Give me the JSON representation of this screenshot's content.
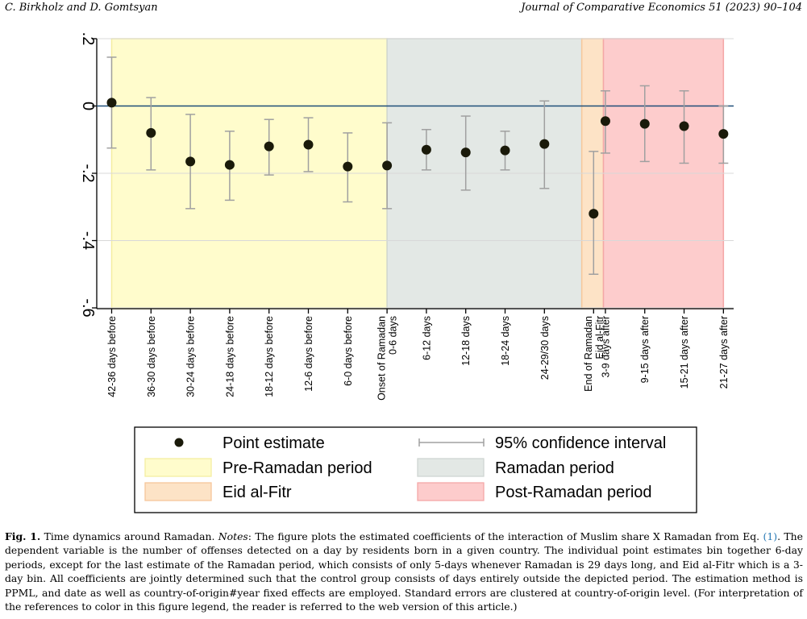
{
  "header": {
    "authors": "C. Birkholz and D. Gomtsyan",
    "journal": "Journal of Comparative Economics 51 (2023) 90–104"
  },
  "colors": {
    "pre_ramadan": "#fffccc",
    "ramadan": "#e3e8e5",
    "eid": "#fde3c6",
    "post_ramadan": "#fdcccc",
    "point": "#1a1a0a",
    "ci": "#a0a0a0",
    "zero_line": "#1f4e79"
  },
  "chart_data": {
    "type": "scatter",
    "y_tick_labels": [
      "-.6",
      "-.4",
      "-.2",
      "0",
      ".2"
    ],
    "y_ticks": [
      -0.6,
      -0.4,
      -0.2,
      0,
      0.2
    ],
    "ylim": [
      -0.6,
      0.2
    ],
    "grid": true,
    "zero_line": true,
    "categories": [
      [
        "42-36 days before"
      ],
      [
        "36-30 days before"
      ],
      [
        "30-24 days before"
      ],
      [
        "24-18 days before"
      ],
      [
        "18-12 days before"
      ],
      [
        "12-6 days before"
      ],
      [
        "6-0 days before"
      ],
      [
        "Onset of Ramadan",
        "0-6 days"
      ],
      [
        "6-12 days"
      ],
      [
        "12-18 days"
      ],
      [
        "18-24 days"
      ],
      [
        "24-29/30 days"
      ],
      [
        "End of Ramadan",
        "Eid al-Fitr"
      ],
      [
        "3-9 days after"
      ],
      [
        "9-15 days after"
      ],
      [
        "15-21 days after"
      ],
      [
        "21-27 days after"
      ]
    ],
    "x": [
      0,
      1,
      2,
      3,
      4,
      5,
      6,
      7,
      8,
      9,
      10,
      11,
      12.25,
      12.55,
      13.55,
      14.55,
      15.55
    ],
    "estimates": [
      0.01,
      -0.08,
      -0.165,
      -0.175,
      -0.12,
      -0.115,
      -0.18,
      -0.177,
      -0.13,
      -0.138,
      -0.132,
      -0.113,
      -0.32,
      -0.045,
      -0.053,
      -0.06,
      -0.083
    ],
    "ci_lower": [
      -0.125,
      -0.19,
      -0.305,
      -0.28,
      -0.205,
      -0.195,
      -0.285,
      -0.305,
      -0.19,
      -0.25,
      -0.19,
      -0.245,
      -0.5,
      -0.14,
      -0.165,
      -0.17,
      -0.17
    ],
    "ci_upper": [
      0.145,
      0.025,
      -0.025,
      -0.075,
      -0.04,
      -0.035,
      -0.08,
      -0.05,
      -0.07,
      -0.03,
      -0.075,
      0.015,
      -0.135,
      0.045,
      0.06,
      0.045,
      0.0
    ],
    "periods": [
      {
        "name": "Pre-Ramadan period",
        "from": 0,
        "to": 7,
        "color": "#fffccc"
      },
      {
        "name": "Ramadan period",
        "from": 7,
        "to": 11.95,
        "color": "#e3e8e5"
      },
      {
        "name": "Eid al-Fitr",
        "from": 11.95,
        "to": 12.5,
        "color": "#fde3c6"
      },
      {
        "name": "Post-Ramadan period",
        "from": 12.5,
        "to": 15.55,
        "color": "#fdcccc"
      }
    ],
    "legend": {
      "placement": "bottom",
      "entries": [
        {
          "key": "point",
          "label": "Point estimate"
        },
        {
          "key": "ci",
          "label": "95% confidence interval"
        },
        {
          "key": "pre",
          "label": "Pre-Ramadan period"
        },
        {
          "key": "ramadan",
          "label": "Ramadan period"
        },
        {
          "key": "eid",
          "label": "Eid al-Fitr"
        },
        {
          "key": "post",
          "label": "Post-Ramadan period"
        }
      ]
    }
  },
  "caption": {
    "fig_label": "Fig. 1.",
    "title": " Time dynamics around Ramadan. ",
    "notes_label": "Notes",
    "text_before_ref": ": The figure plots the estimated coefficients of the interaction of Muslim share X Ramadan from Eq. ",
    "ref": "(1)",
    "text_after_ref": ". The dependent variable is the number of offenses detected on a day by residents born in a given country. The individual point estimates bin together 6-day periods, except for the last estimate of the Ramadan period, which consists of only 5-days whenever Ramadan is 29 days long, and Eid al-Fitr which is a 3-day bin. All coefficients are jointly determined such that the control group consists of days entirely outside the depicted period. The estimation method is PPML, and date as well as country-of-origin#year fixed effects are employed. Standard errors are clustered at country-of-origin level. (For interpretation of the references to color in this figure legend, the reader is referred to the web version of this article.)"
  }
}
